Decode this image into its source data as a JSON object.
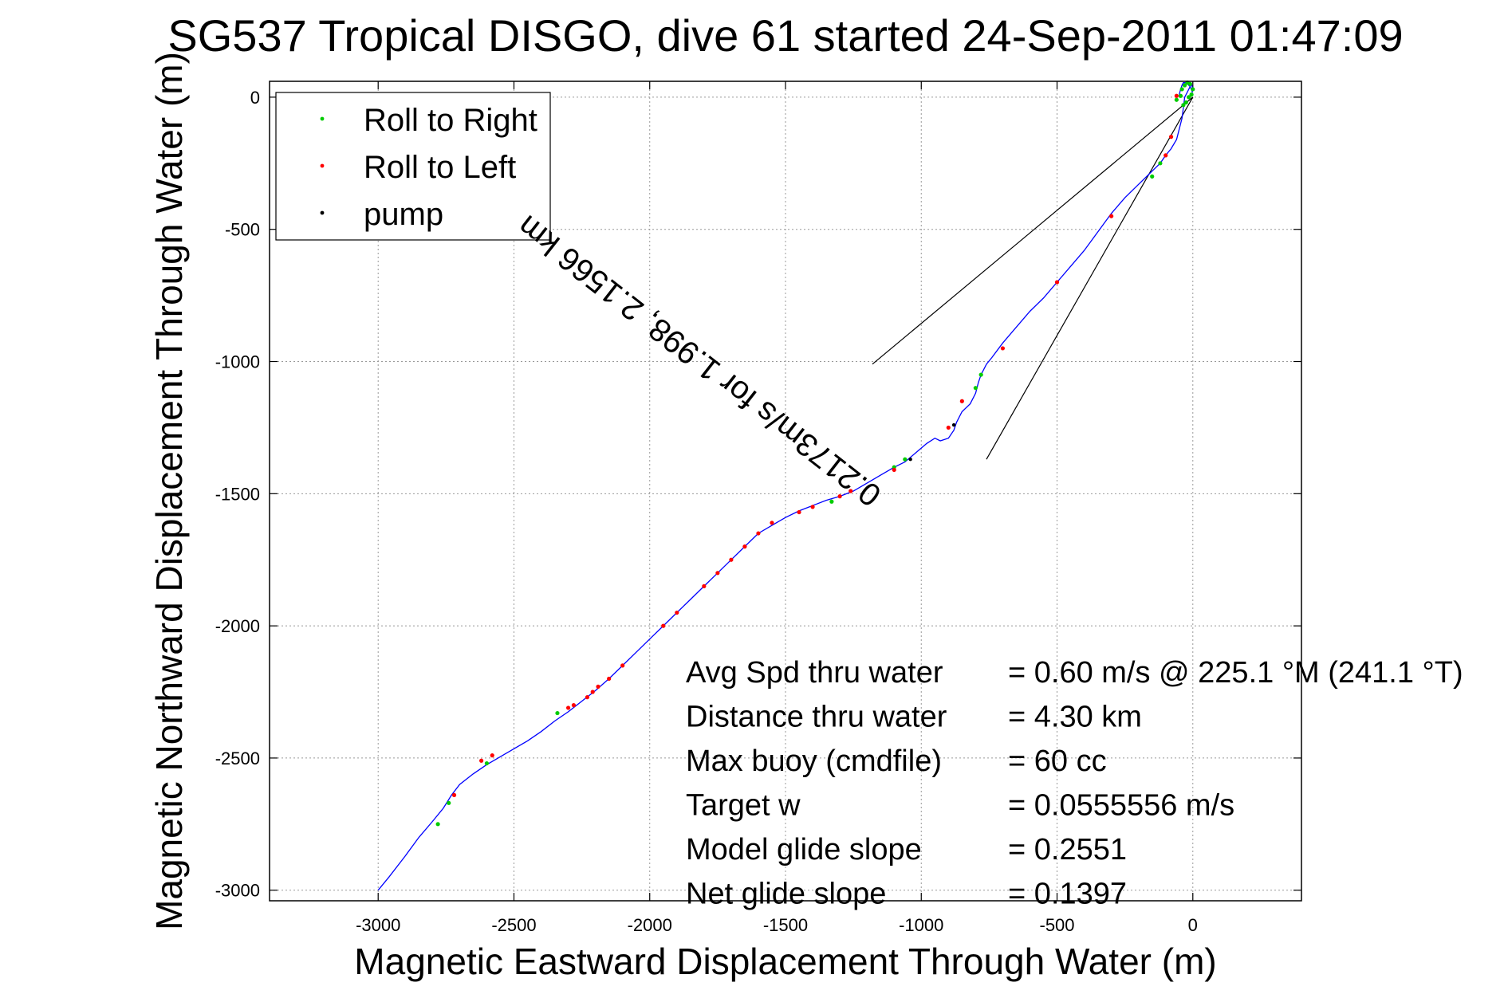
{
  "chart_data": {
    "type": "line",
    "title": "SG537 Tropical DISGO, dive 61 started 24-Sep-2011 01:47:09",
    "xlabel": "Magnetic Eastward Displacement Through Water (m)",
    "ylabel": "Magnetic Northward Displacement Through Water (m)",
    "xlim": [
      -3400,
      400
    ],
    "ylim": [
      -3040,
      60
    ],
    "xticks": [
      -3000,
      -2500,
      -2000,
      -1500,
      -1000,
      -500,
      0
    ],
    "yticks": [
      0,
      -500,
      -1000,
      -1500,
      -2000,
      -2500,
      -3000
    ],
    "grid": true,
    "legend_position": "top-left",
    "legend": [
      {
        "label": "Roll to Right",
        "color": "#00cc00"
      },
      {
        "label": "Roll to Left",
        "color": "#ff0000"
      },
      {
        "label": "pump",
        "color": "#000000"
      }
    ],
    "track": {
      "name": "glider track",
      "color": "#0000ff",
      "x": [
        -3000,
        -2960,
        -2900,
        -2850,
        -2800,
        -2760,
        -2730,
        -2700,
        -2650,
        -2600,
        -2550,
        -2500,
        -2450,
        -2400,
        -2350,
        -2300,
        -2250,
        -2200,
        -2150,
        -2100,
        -2050,
        -2000,
        -1950,
        -1900,
        -1850,
        -1800,
        -1750,
        -1700,
        -1650,
        -1600,
        -1550,
        -1500,
        -1450,
        -1400,
        -1350,
        -1300,
        -1250,
        -1200,
        -1150,
        -1100,
        -1060,
        -1020,
        -980,
        -950,
        -930,
        -900,
        -880,
        -870,
        -850,
        -820,
        -800,
        -790,
        -780,
        -760,
        -740,
        -700,
        -650,
        -600,
        -550,
        -500,
        -450,
        -400,
        -350,
        -300,
        -250,
        -200,
        -170,
        -150,
        -120,
        -100,
        -80,
        -60,
        -50,
        -40,
        -35,
        -30,
        -20,
        -10,
        -5,
        0,
        -2,
        -10,
        -25,
        -35,
        -40,
        -45,
        -50
      ],
      "y": [
        -3000,
        -2950,
        -2870,
        -2800,
        -2740,
        -2690,
        -2640,
        -2600,
        -2560,
        -2525,
        -2495,
        -2465,
        -2435,
        -2400,
        -2360,
        -2325,
        -2285,
        -2245,
        -2200,
        -2150,
        -2100,
        -2050,
        -2000,
        -1950,
        -1900,
        -1850,
        -1800,
        -1750,
        -1700,
        -1650,
        -1620,
        -1590,
        -1565,
        -1545,
        -1525,
        -1510,
        -1490,
        -1460,
        -1430,
        -1400,
        -1380,
        -1345,
        -1310,
        -1290,
        -1300,
        -1290,
        -1260,
        -1230,
        -1190,
        -1160,
        -1120,
        -1080,
        -1050,
        -1010,
        -985,
        -930,
        -870,
        -810,
        -760,
        -700,
        -640,
        -580,
        -510,
        -440,
        -380,
        -330,
        -300,
        -280,
        -250,
        -220,
        -195,
        -160,
        -120,
        -80,
        -40,
        0,
        20,
        40,
        50,
        30,
        20,
        40,
        55,
        55,
        45,
        30,
        10
      ]
    },
    "roll_right_points": {
      "color": "#00cc00",
      "x": [
        -2780,
        -2740,
        -2600,
        -2340,
        -1330,
        -1100,
        -1060,
        -800,
        -780,
        -150,
        -120,
        -60,
        -40,
        -30,
        -20,
        -10,
        0,
        -5,
        -15,
        -25,
        -35,
        -45
      ],
      "y": [
        -2750,
        -2670,
        -2520,
        -2330,
        -1530,
        -1400,
        -1370,
        -1100,
        -1050,
        -300,
        -250,
        -10,
        30,
        45,
        55,
        50,
        30,
        10,
        0,
        -20,
        -30,
        5
      ]
    },
    "roll_left_points": {
      "color": "#ff0000",
      "x": [
        -2720,
        -2620,
        -2580,
        -2300,
        -2280,
        -2230,
        -2210,
        -2190,
        -2150,
        -2100,
        -1950,
        -1900,
        -1800,
        -1750,
        -1700,
        -1650,
        -1600,
        -1550,
        -1450,
        -1400,
        -1300,
        -1260,
        -1100,
        -900,
        -850,
        -700,
        -500,
        -300,
        -100,
        -80,
        -60
      ],
      "y": [
        -2640,
        -2510,
        -2490,
        -2310,
        -2300,
        -2270,
        -2250,
        -2230,
        -2200,
        -2150,
        -2000,
        -1950,
        -1850,
        -1800,
        -1750,
        -1700,
        -1650,
        -1610,
        -1570,
        -1550,
        -1510,
        -1490,
        -1410,
        -1250,
        -1150,
        -950,
        -700,
        -450,
        -220,
        -150,
        5
      ]
    },
    "pump_points": {
      "color": "#000000",
      "x": [
        -1040,
        -880
      ],
      "y": [
        -1370,
        -1240
      ]
    },
    "current_annotation": {
      "text": "0.2173m/s for 1.998, 2.1566 km",
      "anchor": [
        -1140,
        -1490
      ]
    },
    "current_lines": [
      {
        "x": [
          0,
          -1180
        ],
        "y": [
          0,
          -1010
        ]
      },
      {
        "x": [
          0,
          -760
        ],
        "y": [
          0,
          -1370
        ]
      }
    ],
    "stats": [
      {
        "label": "Avg Spd thru water",
        "value": "=  0.60 m/s @ 225.1 °M (241.1 °T)"
      },
      {
        "label": "Distance thru water",
        "value": "=  4.30 km"
      },
      {
        "label": "Max buoy (cmdfile)",
        "value": "= 60 cc"
      },
      {
        "label": "Target w",
        "value": "= 0.0555556 m/s"
      },
      {
        "label": "Model glide slope",
        "value": "= 0.2551"
      },
      {
        "label": "Net glide slope",
        "value": "= 0.1397"
      }
    ]
  }
}
